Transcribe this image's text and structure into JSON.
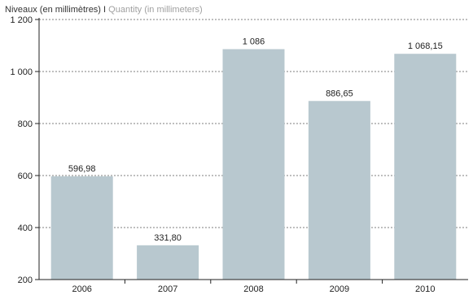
{
  "chart_data": {
    "type": "bar",
    "title_fr": "Niveaux (en millimètres)",
    "title_separator": "I",
    "title_en": "Quantity (in millimeters)",
    "categories": [
      "2006",
      "2007",
      "2008",
      "2009",
      "2010"
    ],
    "values": [
      596.98,
      331.8,
      1086,
      886.65,
      1068.15
    ],
    "data_labels": [
      "596,98",
      "331,80",
      "1 086",
      "886,65",
      "1 068,15"
    ],
    "ylim": [
      200,
      1200
    ],
    "yticks": [
      200,
      400,
      600,
      800,
      1000,
      1200
    ],
    "ytick_labels": [
      "200",
      "400",
      "600",
      "800",
      "1 000",
      "1 200"
    ],
    "grid": "dashed horizontal",
    "bar_color": "#b8c8cf"
  }
}
